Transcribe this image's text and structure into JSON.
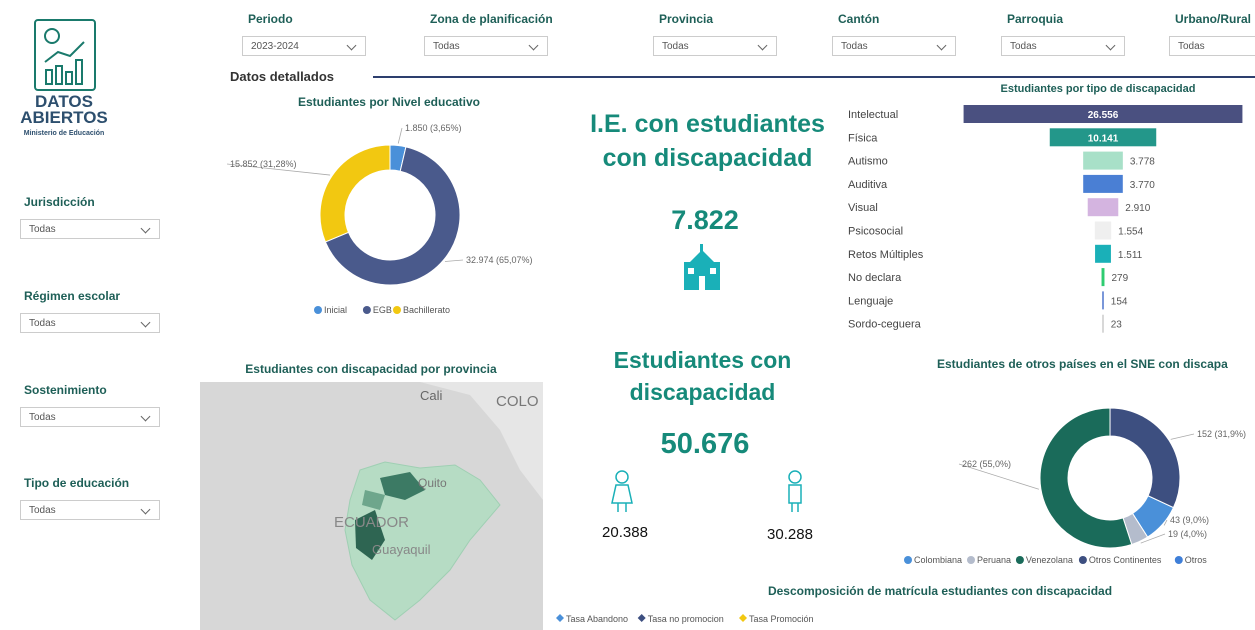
{
  "logo": {
    "line1": "DATOS",
    "line2": "ABIERTOS",
    "subtitle": "Ministerio de Educación"
  },
  "filters_top": [
    {
      "label": "Periodo",
      "value": "2023-2024"
    },
    {
      "label": "Zona de planificación",
      "value": "Todas"
    },
    {
      "label": "Provincia",
      "value": "Todas"
    },
    {
      "label": "Cantón",
      "value": "Todas"
    },
    {
      "label": "Parroquia",
      "value": "Todas"
    },
    {
      "label": "Urbano/Rural",
      "value": "Todas"
    }
  ],
  "filters_left": [
    {
      "label": "Jurisdicción",
      "value": "Todas"
    },
    {
      "label": "Régimen escolar",
      "value": "Todas"
    },
    {
      "label": "Sostenimiento",
      "value": "Todas"
    },
    {
      "label": "Tipo de educación",
      "value": "Todas"
    }
  ],
  "tab": "Datos detallados",
  "kpis": {
    "schools": {
      "title": "I.E. con estudiantes con discapacidad",
      "value": "7.822"
    },
    "students": {
      "title": "Estudiantes con discapacidad",
      "value": "50.676",
      "female": "20.388",
      "male": "30.288"
    }
  },
  "map": {
    "title": "Estudiantes con discapacidad por provincia",
    "labels": [
      "Cali",
      "COLO",
      "Quito",
      "ECUADOR",
      "Guayaquil"
    ]
  },
  "chart_data": [
    {
      "type": "pie",
      "title": "Estudiantes por Nivel educativo",
      "categories": [
        "Inicial",
        "EGB",
        "Bachillerato"
      ],
      "values": [
        1850,
        32974,
        15852
      ],
      "value_labels": [
        "1.850 (3,65%)",
        "32.974 (65,07%)",
        "15.852 (31,28%)"
      ],
      "colors": [
        "#4a90d9",
        "#4a5a8c",
        "#f2c811"
      ]
    },
    {
      "type": "bar",
      "title": "Estudiantes por tipo de discapacidad",
      "categories": [
        "Intelectual",
        "Física",
        "Autismo",
        "Auditiva",
        "Visual",
        "Psicosocial",
        "Retos Múltiples",
        "No declara",
        "Lenguaje",
        "Sordo-ceguera"
      ],
      "values": [
        26556,
        10141,
        3778,
        3770,
        2910,
        1554,
        1511,
        279,
        154,
        23
      ],
      "value_labels": [
        "26.556",
        "10.141",
        "3.778",
        "3.770",
        "2.910",
        "1.554",
        "1.511",
        "279",
        "154",
        "23"
      ],
      "colors": [
        "#4a5080",
        "#23978a",
        "#a8e0c8",
        "#4a7fd4",
        "#d4b4e0",
        "#efefef",
        "#1ab0b8",
        "#2ecc71",
        "#5b7fd0",
        "#cccccc"
      ]
    },
    {
      "type": "pie",
      "title": "Estudiantes de otros países en el SNE con discapa",
      "categories": [
        "Colombiana",
        "Peruana",
        "Venezolana",
        "Otros Continentes",
        "Otros"
      ],
      "values": [
        43,
        19,
        262,
        152,
        null
      ],
      "value_labels": [
        "43 (9,0%)",
        "19 (4,0%)",
        "262 (55,0%)",
        "152 (31,9%)",
        null
      ],
      "colors": [
        "#4a90d9",
        "#b4bccc",
        "#1a6b5a",
        "#3d4f80",
        "#3f7fd8"
      ]
    },
    {
      "type": "line",
      "title": "Descomposición de matrícula estudiantes con discapacidad",
      "categories": [],
      "series": [
        {
          "name": "Tasa Abandono",
          "color": "#4a90d9",
          "values": []
        },
        {
          "name": "Tasa no promocion",
          "color": "#3d4f80",
          "values": []
        },
        {
          "name": "Tasa Promoción",
          "color": "#f2c811",
          "values": []
        }
      ]
    }
  ]
}
